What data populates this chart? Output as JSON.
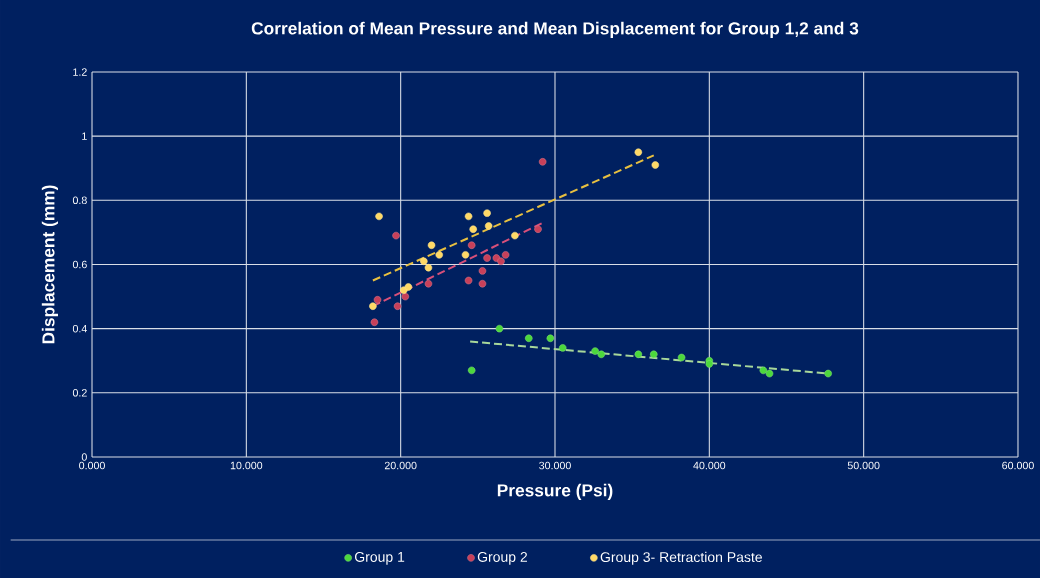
{
  "chart_data": {
    "type": "scatter",
    "title": "Correlation of Mean Pressure and Mean Displacement for Group 1,2 and 3",
    "xlabel": "Pressure (Psi)",
    "ylabel": "Displacement (mm)",
    "series": [
      {
        "name": "Group 1",
        "marker": "circle",
        "color": "#4cd83c",
        "x": [
          24.6,
          26.4,
          28.3,
          29.7,
          30.5,
          32.6,
          33.0,
          35.4,
          36.4,
          38.2,
          40.0,
          40.0,
          43.5,
          43.9,
          47.7
        ],
        "values": [
          0.27,
          0.4,
          0.37,
          0.37,
          0.34,
          0.33,
          0.32,
          0.32,
          0.32,
          0.31,
          0.3,
          0.29,
          0.27,
          0.26,
          0.26
        ]
      },
      {
        "name": "Group 2",
        "marker": "circle",
        "color": "#c8405a",
        "x": [
          29.2,
          19.7,
          24.6,
          25.6,
          26.2,
          26.5,
          26.8,
          28.9,
          25.3,
          24.4,
          25.3,
          21.8,
          18.5,
          20.3,
          19.8,
          18.3
        ],
        "values": [
          0.92,
          0.69,
          0.66,
          0.62,
          0.62,
          0.61,
          0.63,
          0.71,
          0.58,
          0.55,
          0.54,
          0.54,
          0.49,
          0.5,
          0.47,
          0.42
        ]
      },
      {
        "name": "Group 3- Retraction Paste",
        "marker": "circle",
        "color": "#ffd966",
        "x": [
          18.6,
          24.4,
          25.6,
          24.7,
          25.7,
          22.0,
          22.5,
          21.5,
          21.8,
          24.2,
          27.4,
          20.2,
          20.5,
          18.2,
          35.4,
          36.5
        ],
        "values": [
          0.75,
          0.75,
          0.76,
          0.71,
          0.72,
          0.66,
          0.63,
          0.61,
          0.59,
          0.63,
          0.69,
          0.52,
          0.53,
          0.47,
          0.95,
          0.91
        ]
      },
      {
        "type": "line",
        "line_style": "dashed",
        "marker": "none",
        "color": "#a8d89a",
        "x": [
          24.5,
          47.7
        ],
        "values": [
          0.36,
          0.26
        ]
      },
      {
        "type": "line",
        "line_style": "dashed",
        "marker": "none",
        "color": "#d8507a",
        "x": [
          18.2,
          29.2
        ],
        "values": [
          0.47,
          0.73
        ]
      },
      {
        "type": "line",
        "line_style": "dashed",
        "marker": "none",
        "color": "#e8c040",
        "x": [
          18.2,
          36.4
        ],
        "values": [
          0.55,
          0.94
        ]
      }
    ],
    "grid": true,
    "legend": "bottom",
    "xlim": [
      0,
      60
    ],
    "ylim": [
      0,
      1.2
    ],
    "xticks": [
      {
        "value": 0,
        "label": "0.000"
      },
      {
        "value": 10,
        "label": "10.000"
      },
      {
        "value": 20,
        "label": "20.000"
      },
      {
        "value": 30,
        "label": "30.000"
      },
      {
        "value": 40,
        "label": "40.000"
      },
      {
        "value": 50,
        "label": "50.000"
      },
      {
        "value": 60,
        "label": "60.000"
      }
    ],
    "yticks": [
      0,
      0.2,
      0.4,
      0.6,
      0.8,
      1,
      1.2
    ]
  }
}
